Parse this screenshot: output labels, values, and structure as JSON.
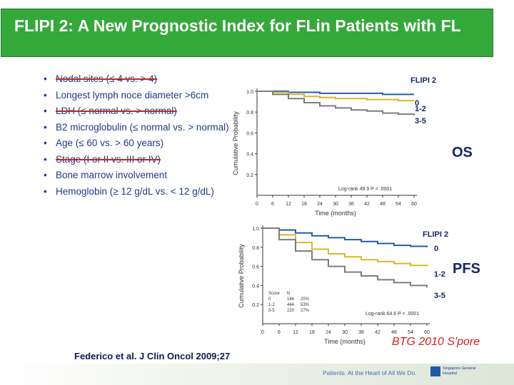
{
  "title": "FLIPI 2: A New Prognostic Index for FLin Patients with FL",
  "bullets": [
    {
      "text": "Nodal sites (≤ 4 vs. > 4)",
      "struck": true
    },
    {
      "text": "Longest lymph noce diameter >6cm",
      "struck": false
    },
    {
      "text": "LDH (≤ normal vs. > normal)",
      "struck": true
    },
    {
      "text": "B2 microglobulin (≤ normal vs. > normal)",
      "struck": false
    },
    {
      "text": "Age (≤ 60 vs. > 60 years)",
      "struck": false
    },
    {
      "text": "Stage (I or II vs. III or IV)",
      "struck": true
    },
    {
      "text": "Bone marrow involvement",
      "struck": false
    },
    {
      "text": "Hemoglobin (≥ 12 g/dL vs. < 12 g/dL)",
      "struck": false
    }
  ],
  "os_label": "OS",
  "pfs_label": "PFS",
  "citation": "Federico et al. J Clin Oncol 2009;27",
  "conference": "BTG 2010 S'pore",
  "footer": {
    "tagline": "Patients. At the Heart of All We Do.",
    "hospital": "Singapore General Hospital"
  },
  "colors": {
    "blue": "#1f5fa6",
    "yellow": "#d8b62f",
    "gray": "#7d7d7d",
    "accent_red": "#d0231c"
  },
  "chart_data": [
    {
      "type": "line",
      "title": "FLIPI 2",
      "panel": "OS",
      "xlabel": "Time (months)",
      "ylabel": "Cumulative Probability",
      "x_ticks": [
        "0",
        "6",
        "12",
        "18",
        "24",
        "30",
        "36",
        "42",
        "48",
        "54",
        "60"
      ],
      "y_ticks": [
        "0.2",
        "0.4",
        "0.6",
        "0.8",
        "1.0"
      ],
      "xlim": [
        0,
        60
      ],
      "ylim": [
        0,
        1
      ],
      "annotation": "Log-rank 49.9 P < .0001",
      "series": [
        {
          "name": "0",
          "color": "blue",
          "x": [
            0,
            6,
            12,
            18,
            24,
            30,
            36,
            42,
            48,
            54,
            60
          ],
          "y": [
            1.0,
            1.0,
            0.99,
            0.99,
            0.98,
            0.98,
            0.98,
            0.98,
            0.97,
            0.97,
            0.97
          ]
        },
        {
          "name": "1-2",
          "color": "yellow",
          "x": [
            0,
            6,
            12,
            18,
            24,
            30,
            36,
            42,
            48,
            54,
            60
          ],
          "y": [
            1.0,
            0.99,
            0.97,
            0.95,
            0.94,
            0.93,
            0.93,
            0.92,
            0.92,
            0.91,
            0.91
          ]
        },
        {
          "name": "3-5",
          "color": "gray",
          "x": [
            0,
            6,
            12,
            18,
            24,
            30,
            36,
            42,
            48,
            54,
            60
          ],
          "y": [
            1.0,
            0.97,
            0.93,
            0.89,
            0.86,
            0.84,
            0.82,
            0.81,
            0.79,
            0.78,
            0.77
          ]
        }
      ],
      "legend_labels": [
        "0",
        "1-2",
        "3-5"
      ]
    },
    {
      "type": "line",
      "title": "FLIPI 2",
      "panel": "PFS",
      "xlabel": "Time (months)",
      "ylabel": "Cumulative Probability",
      "x_ticks": [
        "0",
        "6",
        "12",
        "18",
        "24",
        "30",
        "36",
        "42",
        "48",
        "54",
        "60"
      ],
      "y_ticks": [
        "0.2",
        "0.4",
        "0.6",
        "0.8",
        "1.0"
      ],
      "xlim": [
        0,
        60
      ],
      "ylim": [
        0,
        1
      ],
      "annotation": "Log-rank 64.6 P < .0001",
      "series": [
        {
          "name": "0",
          "color": "blue",
          "x": [
            0,
            6,
            12,
            18,
            24,
            30,
            36,
            42,
            48,
            54,
            60
          ],
          "y": [
            1.0,
            0.98,
            0.95,
            0.92,
            0.9,
            0.88,
            0.86,
            0.84,
            0.82,
            0.81,
            0.8
          ]
        },
        {
          "name": "1-2",
          "color": "yellow",
          "x": [
            0,
            6,
            12,
            18,
            24,
            30,
            36,
            42,
            48,
            54,
            60
          ],
          "y": [
            1.0,
            0.93,
            0.85,
            0.78,
            0.73,
            0.7,
            0.67,
            0.65,
            0.63,
            0.61,
            0.6
          ]
        },
        {
          "name": "3-5",
          "color": "gray",
          "x": [
            0,
            6,
            12,
            18,
            24,
            30,
            36,
            42,
            48,
            54,
            60
          ],
          "y": [
            1.0,
            0.88,
            0.76,
            0.67,
            0.6,
            0.54,
            0.5,
            0.46,
            0.43,
            0.4,
            0.38
          ]
        }
      ],
      "legend_labels": [
        "0",
        "1-2",
        "3-5"
      ],
      "table": {
        "headers": [
          "Score",
          "N"
        ],
        "rows": [
          [
            "0",
            "166",
            "20%"
          ],
          [
            "1-2",
            "444",
            "53%"
          ],
          [
            "3-5",
            "220",
            "27%"
          ]
        ]
      }
    }
  ]
}
